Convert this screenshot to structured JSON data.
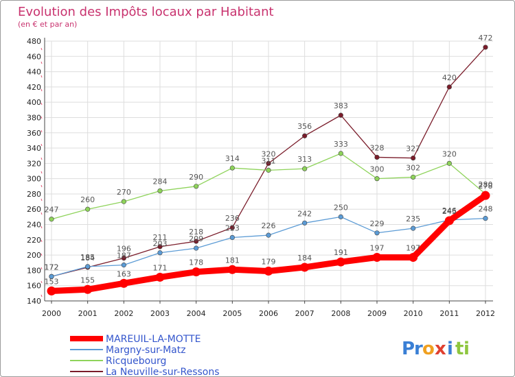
{
  "chart_data": {
    "type": "line",
    "title": "Evolution des Impôts locaux par Habitant",
    "subtitle": "(en € et par an)",
    "xlabel": "",
    "ylabel": "",
    "x": [
      "2000",
      "2001",
      "2002",
      "2003",
      "2004",
      "2005",
      "2006",
      "2007",
      "2008",
      "2009",
      "2010",
      "2011",
      "2012"
    ],
    "ylim": [
      140,
      480
    ],
    "yticks": [
      140,
      160,
      180,
      200,
      220,
      240,
      260,
      280,
      300,
      320,
      340,
      360,
      380,
      400,
      420,
      440,
      460,
      480
    ],
    "grid": true,
    "legend_position": "bottom-left",
    "series": [
      {
        "name": "MAREUIL-LA-MOTTE",
        "color": "#ff0000",
        "values": [
          153,
          155,
          163,
          171,
          178,
          181,
          179,
          184,
          191,
          197,
          197,
          245,
          278
        ],
        "labels": [
          "153",
          "155",
          "163",
          "171",
          "178",
          "181",
          "179",
          "184",
          "191",
          "197",
          "197",
          "245",
          "278"
        ]
      },
      {
        "name": "Margny-sur-Matz",
        "color": "#5b9bd5",
        "values": [
          172,
          185,
          187,
          203,
          209,
          223,
          226,
          242,
          250,
          229,
          235,
          246,
          248
        ],
        "labels": [
          "172",
          "185",
          "187",
          "203",
          "209",
          "223",
          "226",
          "242",
          "250",
          "229",
          "235",
          "246",
          "248"
        ]
      },
      {
        "name": "Ricquebourg",
        "color": "#8ed35a",
        "values": [
          247,
          260,
          270,
          284,
          290,
          314,
          311,
          313,
          333,
          300,
          302,
          320,
          280
        ],
        "labels": [
          "247",
          "260",
          "270",
          "284",
          "290",
          "314",
          "311",
          "313",
          "333",
          "300",
          "302",
          "320",
          "280"
        ]
      },
      {
        "name": "La Neuville-sur-Ressons",
        "color": "#7a1c2a",
        "values": [
          172,
          184,
          196,
          211,
          218,
          236,
          320,
          356,
          383,
          328,
          327,
          420,
          472
        ],
        "labels": [
          "172",
          "184",
          "196",
          "211",
          "218",
          "236",
          "320",
          "356",
          "383",
          "328",
          "327",
          "420",
          "472"
        ]
      }
    ]
  },
  "legend": {
    "items": [
      "MAREUIL-LA-MOTTE",
      "Margny-sur-Matz",
      "Ricquebourg",
      "La Neuville-sur-Ressons"
    ]
  },
  "logo": {
    "letters": [
      "P",
      "r",
      "o",
      "x",
      "i",
      "t",
      "i"
    ],
    "colors": [
      "#3a7fd5",
      "#3a7fd5",
      "#f0a020",
      "#e04030",
      "#3a7fd5",
      "#8ec63f",
      "#8ec63f"
    ]
  }
}
